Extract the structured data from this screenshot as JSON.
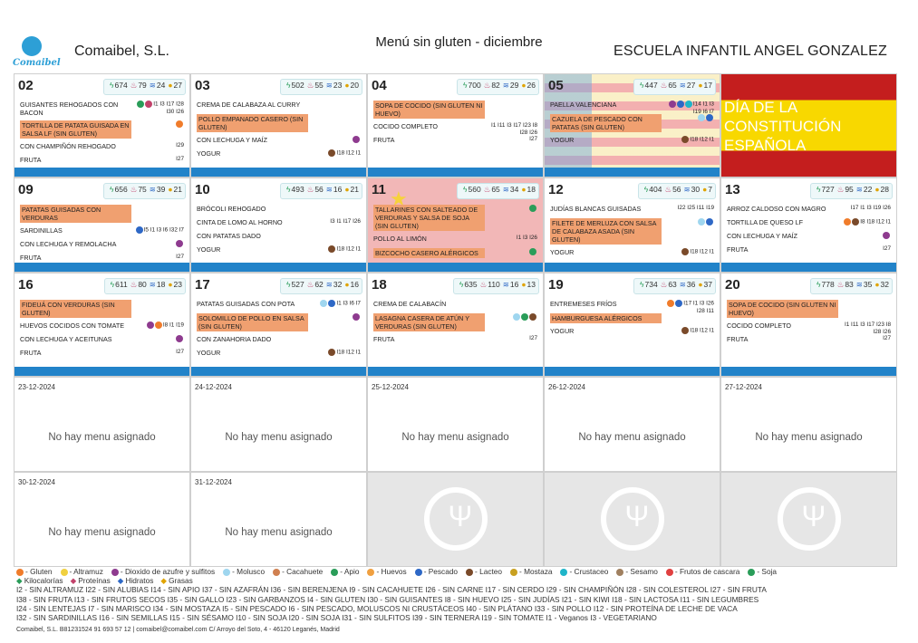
{
  "header": {
    "company": "Comaibel, S.L.",
    "title": "Menú sin gluten - diciembre",
    "school": "ESCUELA INFANTIL ANGEL GONZALEZ",
    "logo_text": "Comaibel"
  },
  "colors": {
    "bar": "#2283c9",
    "highlight": "#f0a070",
    "holiday_red": "#c41e1e",
    "holiday_yellow": "#f8d800"
  },
  "weeks": [
    [
      {
        "day": "02",
        "stats": [
          "674",
          "79",
          "24",
          "27"
        ],
        "items": [
          {
            "name": "GUISANTES REHOGADOS CON BACON",
            "allergens": "I1 I3 I17 I28 I30 I26",
            "hl": false,
            "dots": [
              "#2a9d59",
              "#c2426b"
            ]
          },
          {
            "name": "TORTILLA DE PATATA GUISADA EN SALSA LF (SIN GLUTEN)",
            "allergens": "",
            "hl": true,
            "dots": [
              "#f07c2b"
            ]
          },
          {
            "name": "CON CHAMPIÑÓN REHOGADO",
            "allergens": "I29",
            "hl": false,
            "dots": []
          },
          {
            "name": "FRUTA",
            "allergens": "I27",
            "hl": false,
            "dots": []
          }
        ]
      },
      {
        "day": "03",
        "stats": [
          "502",
          "55",
          "23",
          "20"
        ],
        "items": [
          {
            "name": "CREMA DE CALABAZA AL CURRY",
            "allergens": "",
            "hl": false,
            "dots": []
          },
          {
            "name": "POLLO EMPANADO CASERO (SIN GLUTEN)",
            "allergens": "",
            "hl": true,
            "dots": []
          },
          {
            "name": "CON LECHUGA Y MAÍZ",
            "allergens": "",
            "hl": false,
            "dots": [
              "#8e3b8f"
            ]
          },
          {
            "name": "YOGUR",
            "allergens": "I18 I12 I1",
            "hl": false,
            "dots": [
              "#7a4a2a"
            ]
          }
        ]
      },
      {
        "day": "04",
        "stats": [
          "700",
          "82",
          "29",
          "26"
        ],
        "items": [
          {
            "name": "SOPA DE COCIDO (SIN GLUTEN NI HUEVO)",
            "allergens": "",
            "hl": true,
            "dots": []
          },
          {
            "name": "COCIDO COMPLETO",
            "allergens": "I1 I11 I3 I17 I23 I8 I28 I26",
            "hl": false,
            "dots": []
          },
          {
            "name": "FRUTA",
            "allergens": "I27",
            "hl": false,
            "dots": []
          }
        ]
      },
      {
        "day": "05",
        "stats": [
          "447",
          "65",
          "27",
          "17"
        ],
        "flag": "valencia",
        "items": [
          {
            "name": "PAELLA VALENCIANA",
            "allergens": "I14 I1 I3 I19 I6 I7",
            "hl": false,
            "dots": [
              "#8e3b8f",
              "#2e68c6",
              "#1fb5c9"
            ]
          },
          {
            "name": "CAZUELA DE PESCADO CON PATATAS (SIN GLUTEN)",
            "allergens": "",
            "hl": true,
            "dots": [
              "#9fd6ef",
              "#2e68c6"
            ]
          },
          {
            "name": "YOGUR",
            "allergens": "I18 I12 I1",
            "hl": false,
            "dots": [
              "#7a4a2a"
            ]
          }
        ]
      },
      {
        "day": "",
        "holiday": "DÍA DE LA CONSTITUCIÓN ESPAÑOLA"
      }
    ],
    [
      {
        "day": "09",
        "stats": [
          "656",
          "75",
          "39",
          "21"
        ],
        "items": [
          {
            "name": "PATATAS GUISADAS CON VERDURAS",
            "allergens": "",
            "hl": true,
            "dots": []
          },
          {
            "name": "SARDINILLAS",
            "allergens": "I5 I1 I3 I6 I32 I7",
            "hl": false,
            "dots": [
              "#2e68c6"
            ]
          },
          {
            "name": "CON LECHUGA Y REMOLACHA",
            "allergens": "",
            "hl": false,
            "dots": [
              "#8e3b8f"
            ]
          },
          {
            "name": "FRUTA",
            "allergens": "I27",
            "hl": false,
            "dots": []
          }
        ]
      },
      {
        "day": "10",
        "stats": [
          "493",
          "56",
          "16",
          "21"
        ],
        "items": [
          {
            "name": "BRÓCOLI REHOGADO",
            "allergens": "",
            "hl": false,
            "dots": []
          },
          {
            "name": "CINTA DE LOMO AL HORNO",
            "allergens": "I3 I1 I17 I26",
            "hl": false,
            "dots": []
          },
          {
            "name": "CON PATATAS DADO",
            "allergens": "",
            "hl": false,
            "dots": []
          },
          {
            "name": "YOGUR",
            "allergens": "I18 I12 I1",
            "hl": false,
            "dots": [
              "#7a4a2a"
            ]
          }
        ]
      },
      {
        "day": "11",
        "stats": [
          "560",
          "65",
          "34",
          "18"
        ],
        "flag": "china",
        "items": [
          {
            "name": "TALLARINES CON SALTEADO DE VERDURAS Y SALSA DE SOJA (SIN GLUTEN)",
            "allergens": "",
            "hl": true,
            "dots": [
              "#2a9d59"
            ]
          },
          {
            "name": "POLLO AL LIMÓN",
            "allergens": "I1 I3 I26",
            "hl": false,
            "dots": []
          },
          {
            "name": "BIZCOCHO CASERO ALÉRGICOS",
            "allergens": "",
            "hl": true,
            "dots": [
              "#2a9d59"
            ]
          }
        ]
      },
      {
        "day": "12",
        "stats": [
          "404",
          "56",
          "30",
          "7"
        ],
        "items": [
          {
            "name": "JUDÍAS BLANCAS GUISADAS",
            "allergens": "I22 I25 I11 I19",
            "hl": false,
            "dots": []
          },
          {
            "name": "FILETE DE MERLUZA CON SALSA DE CALABAZA ASADA (SIN GLUTEN)",
            "allergens": "",
            "hl": true,
            "dots": [
              "#9fd6ef",
              "#2e68c6"
            ]
          },
          {
            "name": "YOGUR",
            "allergens": "I18 I12 I1",
            "hl": false,
            "dots": [
              "#7a4a2a"
            ]
          }
        ]
      },
      {
        "day": "13",
        "stats": [
          "727",
          "95",
          "22",
          "28"
        ],
        "items": [
          {
            "name": "ARROZ CALDOSO CON MAGRO",
            "allergens": "I17 I1 I3 I19 I26",
            "hl": false,
            "dots": []
          },
          {
            "name": "TORTILLA DE QUESO LF",
            "allergens": "I8 I18 I12 I1",
            "hl": false,
            "dots": [
              "#f07c2b",
              "#7a4a2a"
            ]
          },
          {
            "name": "CON LECHUGA Y MAÍZ",
            "allergens": "",
            "hl": false,
            "dots": [
              "#8e3b8f"
            ]
          },
          {
            "name": "FRUTA",
            "allergens": "I27",
            "hl": false,
            "dots": []
          }
        ]
      }
    ],
    [
      {
        "day": "16",
        "stats": [
          "611",
          "80",
          "18",
          "23"
        ],
        "items": [
          {
            "name": "FIDEUÁ CON VERDURAS (SIN GLUTEN)",
            "allergens": "",
            "hl": true,
            "dots": []
          },
          {
            "name": "HUEVOS COCIDOS CON TOMATE",
            "allergens": "I8 I1 I19",
            "hl": false,
            "dots": [
              "#8e3b8f",
              "#f07c2b"
            ]
          },
          {
            "name": "CON LECHUGA Y ACEITUNAS",
            "allergens": "",
            "hl": false,
            "dots": [
              "#8e3b8f"
            ]
          },
          {
            "name": "FRUTA",
            "allergens": "I27",
            "hl": false,
            "dots": []
          }
        ]
      },
      {
        "day": "17",
        "stats": [
          "527",
          "62",
          "32",
          "16"
        ],
        "items": [
          {
            "name": "PATATAS GUISADAS CON POTA",
            "allergens": "I1 I3 I6 I7",
            "hl": false,
            "dots": [
              "#9fd6ef",
              "#2e68c6"
            ]
          },
          {
            "name": "SOLOMILLO DE POLLO EN SALSA (SIN GLUTEN)",
            "allergens": "",
            "hl": true,
            "dots": [
              "#8e3b8f"
            ]
          },
          {
            "name": "CON ZANAHORIA DADO",
            "allergens": "",
            "hl": false,
            "dots": []
          },
          {
            "name": "YOGUR",
            "allergens": "I18 I12 I1",
            "hl": false,
            "dots": [
              "#7a4a2a"
            ]
          }
        ]
      },
      {
        "day": "18",
        "stats": [
          "635",
          "110",
          "16",
          "13"
        ],
        "items": [
          {
            "name": "CREMA DE CALABACÍN",
            "allergens": "",
            "hl": false,
            "dots": []
          },
          {
            "name": "LASAGNA CASERA DE ATÚN Y VERDURAS (SIN GLUTEN)",
            "allergens": "",
            "hl": true,
            "dots": [
              "#9fd6ef",
              "#2a9d59",
              "#7a4a2a"
            ]
          },
          {
            "name": "FRUTA",
            "allergens": "I27",
            "hl": false,
            "dots": []
          }
        ]
      },
      {
        "day": "19",
        "stats": [
          "734",
          "63",
          "36",
          "37"
        ],
        "items": [
          {
            "name": "ENTREMESES FRÍOS",
            "allergens": "I17 I1 I3 I26 I28 I11",
            "hl": false,
            "dots": [
              "#f07c2b",
              "#2e68c6"
            ]
          },
          {
            "name": "HAMBURGUESA ALÉRGICOS",
            "allergens": "",
            "hl": true,
            "dots": []
          },
          {
            "name": "YOGUR",
            "allergens": "I18 I12 I1",
            "hl": false,
            "dots": [
              "#7a4a2a"
            ]
          }
        ]
      },
      {
        "day": "20",
        "stats": [
          "778",
          "83",
          "35",
          "32"
        ],
        "items": [
          {
            "name": "SOPA DE COCIDO (SIN GLUTEN NI HUEVO)",
            "allergens": "",
            "hl": true,
            "dots": []
          },
          {
            "name": "COCIDO COMPLETO",
            "allergens": "I1 I11 I3 I17 I23 I8 I28 I26",
            "hl": false,
            "dots": []
          },
          {
            "name": "FRUTA",
            "allergens": "I27",
            "hl": false,
            "dots": []
          }
        ]
      }
    ]
  ],
  "empty_weeks": [
    [
      "23-12-2024",
      "24-12-2024",
      "25-12-2024",
      "26-12-2024",
      "27-12-2024"
    ],
    [
      "30-12-2024",
      "31-12-2024",
      "",
      "",
      ""
    ]
  ],
  "empty_msg": "No hay menu asignado",
  "legend": {
    "icons": [
      {
        "label": "Gluten",
        "color": "#f07c2b"
      },
      {
        "label": "Altramuz",
        "color": "#f0d040"
      },
      {
        "label": "Dioxido de azufre y sulfitos",
        "color": "#8e3b8f"
      },
      {
        "label": "Molusco",
        "color": "#9fd6ef"
      },
      {
        "label": "Cacahuete",
        "color": "#d08050"
      },
      {
        "label": "Apio",
        "color": "#2a9d59"
      },
      {
        "label": "Huevos",
        "color": "#f0a040"
      },
      {
        "label": "Pescado",
        "color": "#2e68c6"
      },
      {
        "label": "Lacteo",
        "color": "#7a4a2a"
      },
      {
        "label": "Mostaza",
        "color": "#c8a020"
      },
      {
        "label": "Crustaceo",
        "color": "#1fb5c9"
      },
      {
        "label": "Sesamo",
        "color": "#a08060"
      },
      {
        "label": "Frutos de cascara",
        "color": "#e04040"
      },
      {
        "label": "Soja",
        "color": "#2a9d59"
      }
    ],
    "nutrition": [
      "Kilocalorías",
      "Proteínas",
      "Hidratos",
      "Grasas"
    ],
    "codes_lines": [
      "I2 - SIN ALTRAMUZ   I22 - SIN ALUBIAS   I14 - SIN APIO   I37 - SIN AZAFRÁN   I36 - SIN BERENJENA   I9 - SIN CACAHUETE   I26 - SIN CARNE   I17 - SIN CERDO   I29 - SIN CHAMPIÑÓN   I28 - SIN COLESTEROL   I27 - SIN FRUTA",
      "I38 - SIN FRUTA   I13 - SIN FRUTOS SECOS   I35 - SIN GALLO   I23 - SIN GARBANZOS   I4 - SIN GLUTEN   I30 - SIN GUISANTES   I8 - SIN HUEVO   I25 - SIN JUDÍAS   I21 - SIN KIWI   I18 - SIN LACTOSA   I11 - SIN LEGUMBRES",
      "I24 - SIN LENTEJAS   I7 - SIN MARISCO   I34 - SIN MOSTAZA   I5 - SIN PESCADO   I6 - SIN PESCADO, MOLUSCOS NI CRUSTÁCEOS   I40 - SIN PLÁTANO   I33 - SIN POLLO   I12 - SIN PROTEÍNA DE LECHE DE VACA",
      "I32 - SIN SARDINILLAS   I16 - SIN SEMILLAS   I15 - SIN SÉSAMO   I10 - SIN SOJA   I20 - SIN SOJA   I31 - SIN SULFITOS   I39 - SIN TERNERA   I19 - SIN TOMATE   I1 - Veganos   I3 - VEGETARIANO"
    ]
  },
  "footer": "Comaibel, S.L.      B81231524      91 693 57 12 | comaibel@comaibel.com      C/ Arroyo del Soto, 4 - 46120 Leganés, Madrid"
}
